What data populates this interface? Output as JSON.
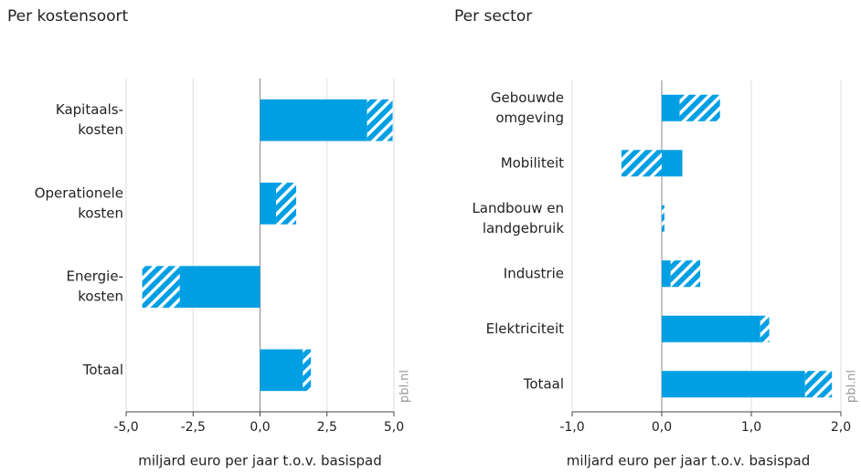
{
  "chart_data": [
    {
      "type": "bar",
      "orientation": "horizontal",
      "title": "Per kostensoort",
      "categories": [
        [
          "Kapitaals-",
          "kosten"
        ],
        [
          "Operationele",
          "kosten"
        ],
        [
          "Energie-",
          "kosten"
        ],
        [
          "Totaal"
        ]
      ],
      "series": [
        {
          "pattern": "solid",
          "color": "#009fe3",
          "values": [
            4.0,
            0.6,
            -3.0,
            1.6
          ]
        },
        {
          "pattern": "hatched",
          "color": "#009fe3",
          "values": [
            0.95,
            0.75,
            -1.4,
            0.3
          ]
        }
      ],
      "xlim": [
        -5,
        5
      ],
      "xticks": [
        {
          "value": -5,
          "label": "-5,0"
        },
        {
          "value": -2.5,
          "label": "-2,5"
        },
        {
          "value": 0,
          "label": "0,0"
        },
        {
          "value": 2.5,
          "label": "2,5"
        },
        {
          "value": 5,
          "label": "5,0"
        }
      ],
      "xlabel": "miljard euro per jaar t.o.v. basispad",
      "source": "pbl.nl",
      "grid": true
    },
    {
      "type": "bar",
      "orientation": "horizontal",
      "title": "Per sector",
      "categories": [
        [
          "Gebouwde",
          "omgeving"
        ],
        [
          "Mobiliteit"
        ],
        [
          "Landbouw en",
          "landgebruik"
        ],
        [
          "Industrie"
        ],
        [
          "Elektriciteit"
        ],
        [
          "Totaal"
        ]
      ],
      "series": [
        {
          "pattern": "solid",
          "color": "#009fe3",
          "values": [
            0.2,
            0.23,
            0,
            0.1,
            1.1,
            1.6
          ]
        },
        {
          "pattern": "hatched",
          "color": "#009fe3",
          "values": [
            0.45,
            -0.45,
            0.03,
            0.33,
            0.1,
            0.3
          ]
        }
      ],
      "xlim": [
        -1,
        2
      ],
      "xticks": [
        {
          "value": -1,
          "label": "-1,0"
        },
        {
          "value": 0,
          "label": "0,0"
        },
        {
          "value": 1,
          "label": "1,0"
        },
        {
          "value": 2,
          "label": "2,0"
        }
      ],
      "xlabel": "miljard euro per jaar t.o.v. basispad",
      "source": "pbl.nl",
      "grid": true
    }
  ]
}
